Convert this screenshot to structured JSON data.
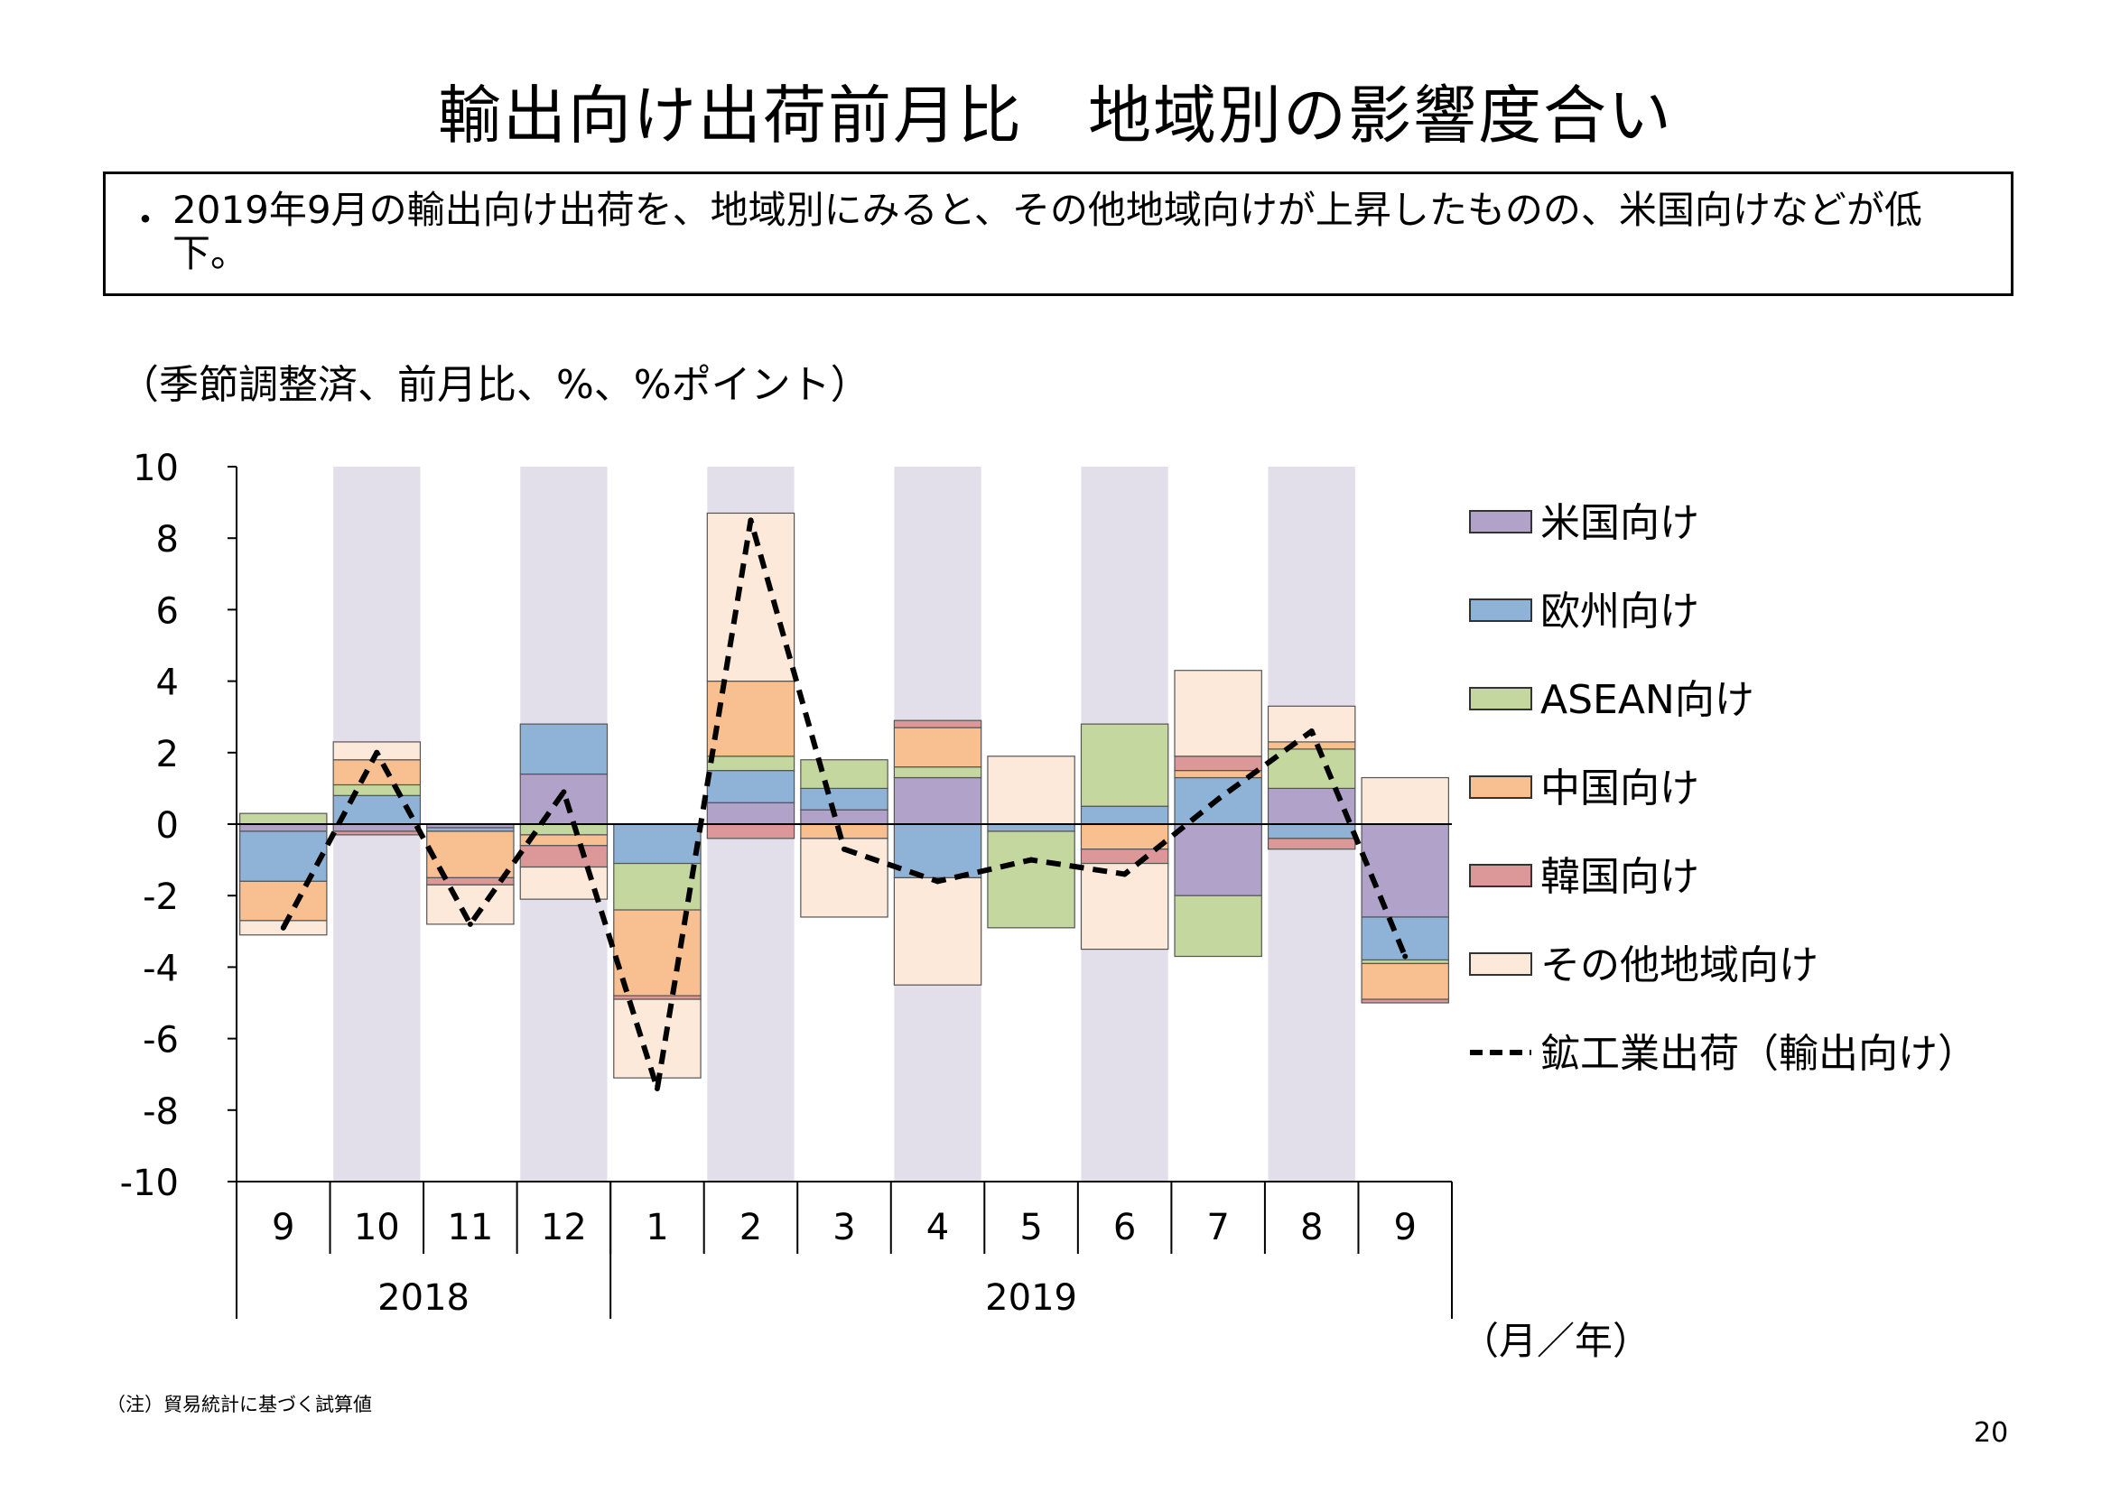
{
  "page": {
    "title": "輸出向け出荷前月比　地域別の影響度合い",
    "summary_bullet": "・",
    "summary": "2019年9月の輸出向け出荷を、地域別にみると、その他地域向けが上昇したものの、米国向けなどが低下。",
    "unit_note": "（季節調整済、前月比、%、%ポイント）",
    "footnote": "（注）貿易統計に基づく試算値",
    "page_number": "20"
  },
  "chart_data": {
    "type": "bar",
    "stacked": true,
    "title": "",
    "xlabel": "（月／年）",
    "ylabel": "",
    "ylim": [
      -10,
      10
    ],
    "yticks": [
      -10,
      -8,
      -6,
      -4,
      -2,
      0,
      2,
      4,
      6,
      8,
      10
    ],
    "categories": [
      "9",
      "10",
      "11",
      "12",
      "1",
      "2",
      "3",
      "4",
      "5",
      "6",
      "7",
      "8",
      "9"
    ],
    "year_groups": [
      {
        "label": "2018",
        "from": 0,
        "to": 3
      },
      {
        "label": "2019",
        "from": 4,
        "to": 12
      }
    ],
    "shaded_categories": [
      1,
      3,
      5,
      7,
      9,
      11
    ],
    "shade_color": "#e3dfea",
    "grid": false,
    "legend_position": "right",
    "series": [
      {
        "name": "米国向け",
        "color": "#b0a2c9",
        "values": [
          -0.2,
          -0.2,
          -0.1,
          1.4,
          0,
          0.6,
          0.4,
          1.3,
          0,
          0,
          -2.0,
          1.0,
          -2.6
        ]
      },
      {
        "name": "欧州向け",
        "color": "#8fb2d7",
        "values": [
          -1.4,
          0.8,
          -0.1,
          1.4,
          -1.1,
          0.9,
          0.6,
          -1.5,
          -0.2,
          0.5,
          1.3,
          -0.4,
          -1.2
        ]
      },
      {
        "name": "ASEAN向け",
        "color": "#c4d79e",
        "values": [
          0.3,
          0.3,
          0,
          -0.3,
          -1.3,
          0.4,
          0.8,
          0.3,
          -2.7,
          2.3,
          -1.7,
          1.1,
          -0.1
        ]
      },
      {
        "name": "中国向け",
        "color": "#f8bf90",
        "values": [
          -1.1,
          0.7,
          -1.3,
          -0.3,
          -2.4,
          2.1,
          -0.4,
          1.1,
          0,
          -0.7,
          0.2,
          0.2,
          -1.0
        ]
      },
      {
        "name": "韓国向け",
        "color": "#dc9898",
        "values": [
          0,
          -0.1,
          -0.2,
          -0.6,
          -0.1,
          -0.4,
          0,
          0.2,
          0,
          -0.4,
          0.4,
          -0.3,
          -0.1
        ]
      },
      {
        "name": "その他地域向け",
        "color": "#fde9d9",
        "values": [
          -0.4,
          0.5,
          -1.1,
          -0.9,
          -2.2,
          4.7,
          -2.2,
          -3.0,
          1.9,
          -2.4,
          2.4,
          1.0,
          1.3
        ]
      }
    ],
    "line": {
      "name": "鉱工業出荷（輸出向け）",
      "color": "#000000",
      "values": [
        -2.9,
        2.0,
        -2.8,
        0.9,
        -7.4,
        8.5,
        -0.7,
        -1.6,
        -1.0,
        -1.4,
        0.7,
        2.6,
        -3.7
      ]
    }
  }
}
